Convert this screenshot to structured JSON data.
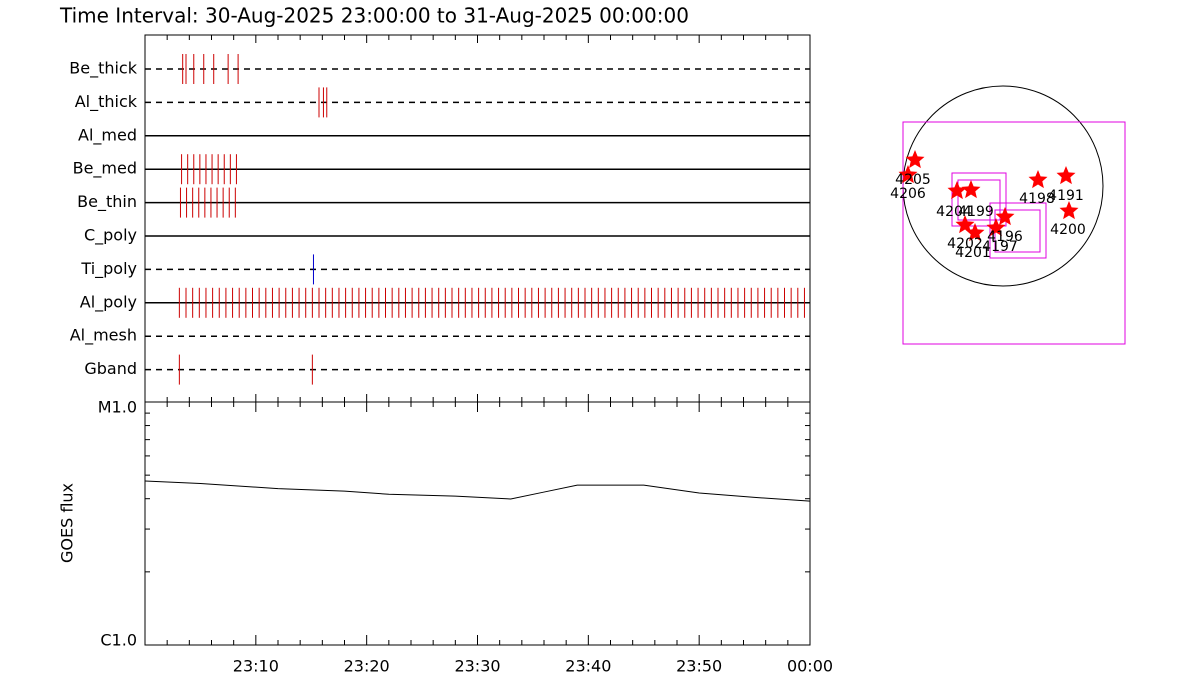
{
  "chart_data": [
    {
      "type": "timeline",
      "title": "Time Interval: 30-Aug-2025 23:00:00 to 31-Aug-2025 00:00:00",
      "rows": [
        {
          "name": "Be_thick",
          "style": "dashed",
          "color": "#cc0000",
          "events": [
            3.4,
            3.7,
            4.4,
            5.3,
            6.2,
            7.5,
            8.4
          ]
        },
        {
          "name": "Al_thick",
          "style": "dashed",
          "color": "#cc0000",
          "events": [
            15.7,
            16.1,
            16.4
          ]
        },
        {
          "name": "Al_med",
          "style": "solid",
          "color": "#cc0000",
          "events": []
        },
        {
          "name": "Be_med",
          "style": "solid",
          "color": "#cc0000",
          "events": [
            3.3,
            3.85,
            4.4,
            4.95,
            5.5,
            6.05,
            6.6,
            7.15,
            7.7,
            8.25
          ]
        },
        {
          "name": "Be_thin",
          "style": "solid",
          "color": "#cc0000",
          "events": [
            3.2,
            3.75,
            4.3,
            4.85,
            5.4,
            5.95,
            6.5,
            7.05,
            7.6,
            8.15
          ]
        },
        {
          "name": "C_poly",
          "style": "solid",
          "color": "#cc0000",
          "events": []
        },
        {
          "name": "Ti_poly",
          "style": "dashed",
          "color": "#0000cc",
          "events": [
            15.2
          ]
        },
        {
          "name": "Al_poly",
          "style": "solid",
          "color": "#cc0000",
          "events": [
            3.1,
            3.7,
            4.3,
            4.9,
            5.5,
            6.1,
            6.7,
            7.3,
            7.9,
            8.5,
            9.1,
            9.7,
            10.3,
            10.9,
            11.5,
            12.1,
            12.7,
            13.3,
            13.9,
            14.5,
            15.1,
            15.7,
            16.3,
            16.9,
            17.5,
            18.1,
            18.7,
            19.3,
            19.9,
            20.5,
            21.1,
            21.7,
            22.3,
            22.9,
            23.5,
            24.1,
            24.7,
            25.3,
            25.9,
            26.5,
            27.1,
            27.7,
            28.3,
            28.9,
            29.5,
            30.1,
            30.7,
            31.3,
            31.9,
            32.5,
            33.1,
            33.7,
            34.3,
            34.9,
            35.5,
            36.1,
            36.7,
            37.3,
            37.9,
            38.5,
            39.1,
            39.7,
            40.3,
            40.9,
            41.5,
            42.1,
            42.7,
            43.3,
            43.9,
            44.5,
            45.1,
            45.7,
            46.3,
            46.9,
            47.5,
            48.1,
            48.7,
            49.3,
            49.9,
            50.5,
            51.1,
            51.7,
            52.3,
            52.9,
            53.5,
            54.1,
            54.7,
            55.3,
            55.9,
            56.5,
            57.1,
            57.7,
            58.3,
            58.9,
            59.5
          ]
        },
        {
          "name": "Al_mesh",
          "style": "dashed",
          "color": "#cc0000",
          "events": []
        },
        {
          "name": "Gband",
          "style": "dashed",
          "color": "#cc0000",
          "events": [
            3.1,
            15.1
          ]
        }
      ]
    },
    {
      "type": "line",
      "ylabel": "GOES flux",
      "log_y": true,
      "color": "#000000",
      "x": [
        0,
        5,
        12,
        18,
        22,
        28,
        33,
        36,
        39,
        45,
        50,
        55,
        60
      ],
      "values": [
        4.73e-06,
        4.62e-06,
        4.4e-06,
        4.3e-06,
        4.17e-06,
        4.1e-06,
        3.99e-06,
        4.26e-06,
        4.55e-06,
        4.55e-06,
        4.22e-06,
        4.05e-06,
        3.91e-06
      ],
      "xlim": [
        0,
        60
      ],
      "xticks": [
        {
          "value": 10,
          "label": "23:10"
        },
        {
          "value": 20,
          "label": "23:20"
        },
        {
          "value": 30,
          "label": "23:30"
        },
        {
          "value": 40,
          "label": "23:40"
        },
        {
          "value": 50,
          "label": "23:50"
        },
        {
          "value": 60,
          "label": "00:00"
        }
      ],
      "ylim": [
        1e-06,
        1e-05
      ],
      "yticks": [
        {
          "value": 1e-06,
          "label": "C1.0"
        },
        {
          "value": 1e-05,
          "label": "M1.0"
        }
      ]
    }
  ],
  "map": {
    "regions": [
      "4205",
      "4206",
      "4204",
      "4199",
      "4198",
      "4191",
      "4200",
      "4196",
      "4202",
      "4201",
      "4197"
    ]
  }
}
